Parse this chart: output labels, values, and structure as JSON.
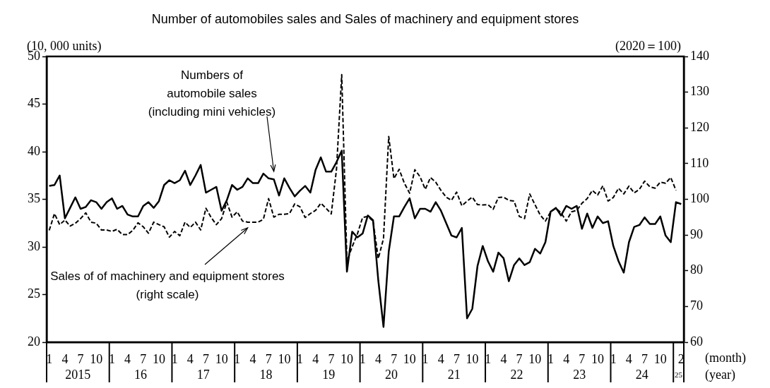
{
  "chart_data": {
    "type": "line",
    "title": "Number of automobiles sales and Sales of machinery and equipment stores",
    "ylabel": "(10, 000 units)",
    "y2label": "(2020＝100)",
    "xlabel": "(month)",
    "annotations": [
      "2015",
      "16",
      "17",
      "18",
      "19",
      "20",
      "21",
      "22",
      "23",
      "24",
      "25",
      "(year)"
    ],
    "categories": [
      "1",
      null,
      null,
      "4",
      null,
      null,
      "7",
      null,
      null,
      "10",
      null,
      null,
      "1",
      null,
      null,
      "4",
      null,
      null,
      "7",
      null,
      null,
      "10",
      null,
      null,
      "1",
      null,
      null,
      "4",
      null,
      null,
      "7",
      null,
      null,
      "10",
      null,
      null,
      "1",
      null,
      null,
      "4",
      null,
      null,
      "7",
      null,
      null,
      "10",
      null,
      null,
      "1",
      null,
      null,
      "4",
      null,
      null,
      "7",
      null,
      null,
      "10",
      null,
      null,
      "1",
      null,
      null,
      "4",
      null,
      null,
      "7",
      null,
      null,
      "10",
      null,
      null,
      "1",
      null,
      null,
      "4",
      null,
      null,
      "7",
      null,
      null,
      "10",
      null,
      null,
      "1",
      null,
      null,
      "4",
      null,
      null,
      "7",
      null,
      null,
      "10",
      null,
      null,
      "1",
      null,
      null,
      "4",
      null,
      null,
      "7",
      null,
      null,
      "10",
      null,
      null,
      "1",
      null,
      null,
      "4",
      null,
      null,
      "7",
      null,
      null,
      "10",
      null,
      null,
      null,
      "2"
    ],
    "series": [
      {
        "name": "Numbers of\nautomobile sales\n(including mini vehicles)",
        "color": "#000000",
        "line_style": "solid",
        "values": [
          36.4,
          36.5,
          37.5,
          33.0,
          34.1,
          35.2,
          34.0,
          34.2,
          34.9,
          34.7,
          34.0,
          34.7,
          35.1,
          34.0,
          34.3,
          33.4,
          33.2,
          33.2,
          34.3,
          34.7,
          34.1,
          34.8,
          36.5,
          37.0,
          36.7,
          37.0,
          38.0,
          36.5,
          37.5,
          38.6,
          35.7,
          36.0,
          36.3,
          33.8,
          34.9,
          36.5,
          36.0,
          36.3,
          37.2,
          36.7,
          36.7,
          37.7,
          37.2,
          37.1,
          35.4,
          37.2,
          36.2,
          35.3,
          35.9,
          36.4,
          35.7,
          38.1,
          39.4,
          37.9,
          37.9,
          38.9,
          40.1,
          27.4,
          31.6,
          31.0,
          31.4,
          33.3,
          32.8,
          26.5,
          21.6,
          29.5,
          33.2,
          33.2,
          34.2,
          35.1,
          33.0,
          34.0,
          34.0,
          33.7,
          34.7,
          33.8,
          32.5,
          31.2,
          31.0,
          32.0,
          22.5,
          23.5,
          28.0,
          30.1,
          28.5,
          27.4,
          29.4,
          28.8,
          26.4,
          28.1,
          28.8,
          28.1,
          28.4,
          29.8,
          29.3,
          30.5,
          33.7,
          34.1,
          33.3,
          34.3,
          34.0,
          34.3,
          31.9,
          33.5,
          32.0,
          33.2,
          32.5,
          32.7,
          30.1,
          28.5,
          27.3,
          30.5,
          32.1,
          32.3,
          33.1,
          32.4,
          32.4,
          33.2,
          31.2,
          30.5,
          34.7,
          34.5
        ]
      },
      {
        "name": "Sales of of machinery and equipment stores\n(right scale)",
        "color": "#000000",
        "line_style": "dashed",
        "axis": "y2",
        "values": [
          91.3,
          96.0,
          92.9,
          94.2,
          92.5,
          93.3,
          94.6,
          96.2,
          93.6,
          93.3,
          91.4,
          91.4,
          91.0,
          91.6,
          90.1,
          90.1,
          91.3,
          93.4,
          92.3,
          90.5,
          93.6,
          92.9,
          92.3,
          89.4,
          91.0,
          89.8,
          93.6,
          92.1,
          93.6,
          91.4,
          97.5,
          94.9,
          92.9,
          94.6,
          99.2,
          95.0,
          96.5,
          93.9,
          93.6,
          93.6,
          93.6,
          94.4,
          100.2,
          95.0,
          95.8,
          95.8,
          96.0,
          98.7,
          97.9,
          94.9,
          96.0,
          96.9,
          98.9,
          97.5,
          95.9,
          108.4,
          134.9,
          82.7,
          86.7,
          90.3,
          94.9,
          95.2,
          93.9,
          83.4,
          89.0,
          117.6,
          105.8,
          108.4,
          104.5,
          101.7,
          108.3,
          106.3,
          102.8,
          106.1,
          104.8,
          102.5,
          100.6,
          99.7,
          102.0,
          98.2,
          99.5,
          100.6,
          98.5,
          98.4,
          98.5,
          97.2,
          100.5,
          100.6,
          99.7,
          99.5,
          95.2,
          94.6,
          101.5,
          98.5,
          95.6,
          93.9,
          96.5,
          97.5,
          96.2,
          93.9,
          96.5,
          96.9,
          98.9,
          100.2,
          102.5,
          101.2,
          103.8,
          99.5,
          100.5,
          103.1,
          101.5,
          103.7,
          101.8,
          102.8,
          105.1,
          103.5,
          103.1,
          104.8,
          104.5,
          106.1,
          102.5,
          null
        ]
      }
    ],
    "ylim": [
      20,
      50
    ],
    "yticks": [
      20,
      25,
      30,
      35,
      40,
      45,
      50
    ],
    "y2lim": [
      60,
      140
    ],
    "y2ticks": [
      60,
      70,
      80,
      90,
      100,
      110,
      120,
      130,
      140
    ],
    "grid": false,
    "legend": false,
    "marker": "none"
  }
}
